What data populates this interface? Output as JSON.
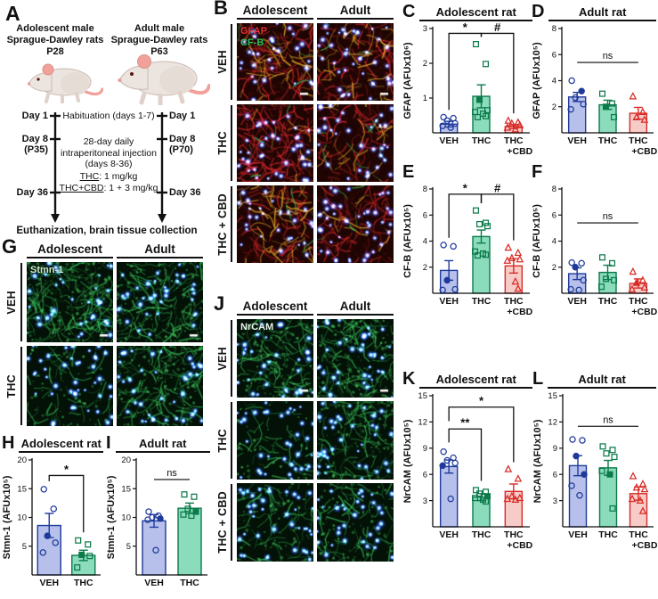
{
  "colors": {
    "veh_fill": "#b7c0ea",
    "veh_stroke": "#1e3a9a",
    "thc_fill": "#8adcbd",
    "thc_stroke": "#0d7a4a",
    "cbd_fill": "#f7cbc7",
    "cbd_stroke": "#d82b26",
    "axis": "#111111"
  },
  "panelA": {
    "letter": "A",
    "adolescent_header": "Adolescent male\nSprague-Dawley rats\nP28",
    "adult_header": "Adult male\nSprague-Dawley rats\nP63",
    "timeline_left": {
      "day1": "Day 1",
      "day8": "Day 8",
      "p": "(P35)",
      "day36": "Day 36"
    },
    "timeline_right": {
      "day1": "Day 1",
      "day8": "Day 8",
      "p": "(P70)",
      "day36": "Day 36"
    },
    "center": {
      "habituation": "Habituation\n(days 1-7)",
      "injection": "28-day daily\nintraperitoneal injection\n(days 8-36)",
      "thc_label": "THC",
      "thc_dose": ": 1 mg/kg",
      "thccbd_label": "THC+CBD",
      "thccbd_dose": ": 1 + 3 mg/kg"
    },
    "endpoint": "Euthanization, brain tissue collection"
  },
  "panelB": {
    "letter": "B",
    "col_headers": [
      "Adolescent",
      "Adult"
    ],
    "row_labels": [
      "VEH",
      "THC",
      "THC + CBD"
    ],
    "stain_labels": [
      {
        "text": "GFAP",
        "color": "#ee2e33"
      },
      {
        "text": "CF-B",
        "color": "#2fc457"
      }
    ],
    "cells": [
      {
        "r": 0.55,
        "y": 0.55,
        "g": 0.18,
        "n": 0.75
      },
      {
        "r": 0.5,
        "y": 0.5,
        "g": 0.15,
        "n": 0.85
      },
      {
        "r": 1.0,
        "y": 0.15,
        "g": 0.2,
        "n": 0.9
      },
      {
        "r": 0.45,
        "y": 0.25,
        "g": 0.25,
        "n": 0.8
      },
      {
        "r": 0.45,
        "y": 0.65,
        "g": 0.12,
        "n": 0.7
      },
      {
        "r": 0.55,
        "y": 0.15,
        "g": 0.18,
        "n": 1.0
      }
    ]
  },
  "panelG": {
    "letter": "G",
    "col_headers": [
      "Adolescent",
      "Adult"
    ],
    "row_labels": [
      "VEH",
      "THC"
    ],
    "stain_labels": [
      {
        "text": "Stmn-1",
        "color": "#cdeccd"
      }
    ],
    "cells": [
      {
        "g": 0.95,
        "n": 0.8
      },
      {
        "g": 0.7,
        "n": 0.8
      },
      {
        "g": 0.3,
        "n": 1.0
      },
      {
        "g": 0.75,
        "n": 0.9
      }
    ]
  },
  "panelJ": {
    "letter": "J",
    "col_headers": [
      "Adolescent",
      "Adult"
    ],
    "row_labels": [
      "VEH",
      "THC",
      "THC + CBD"
    ],
    "stain_labels": [
      {
        "text": "NrCAM",
        "color": "#e9f2e9"
      }
    ],
    "cells": [
      {
        "g": 0.6,
        "n": 0.8
      },
      {
        "g": 0.65,
        "n": 0.9
      },
      {
        "g": 0.25,
        "n": 0.85
      },
      {
        "g": 0.55,
        "n": 0.9
      },
      {
        "g": 0.35,
        "n": 0.9
      },
      {
        "g": 0.4,
        "n": 0.8
      }
    ]
  },
  "chart_data": [
    {
      "id": "C",
      "letter": "C",
      "title": "Adolescent rat",
      "type": "bar",
      "ylabel": "GFAP (AFUx10⁶)",
      "ymax": 3,
      "yticks": [
        1,
        2,
        3
      ],
      "cat_lines": [
        [
          "VEH"
        ],
        [
          "THC"
        ],
        [
          "THC",
          "+CBD"
        ]
      ],
      "groups": [
        {
          "name": "VEH",
          "scheme": "veh",
          "bar": 0.25,
          "err": 0.08,
          "points": [
            0.45,
            0.42,
            0.35,
            0.27,
            0.2,
            0.15
          ],
          "filled": []
        },
        {
          "name": "THC",
          "scheme": "thc",
          "bar": 1.05,
          "err": 0.33,
          "points": [
            2.55,
            1.98,
            0.95,
            0.65,
            0.6,
            0.55,
            0.48,
            0.45
          ],
          "filled": [
            2
          ]
        },
        {
          "name": "THC+CBD",
          "scheme": "cbd",
          "bar": 0.18,
          "err": 0.06,
          "points": [
            0.35,
            0.3,
            0.27,
            0.22,
            0.15,
            0.1
          ],
          "filled": []
        }
      ],
      "sig": [
        {
          "a": 0,
          "b": 1,
          "label": "*",
          "y": 2.86
        },
        {
          "a": 1,
          "b": 2,
          "label": "#",
          "y": 2.86
        }
      ]
    },
    {
      "id": "D",
      "letter": "D",
      "title": "Adult rat",
      "type": "bar",
      "ylabel": "GFAP (AFUx10⁵)",
      "ymax": 8,
      "yticks": [
        2,
        4,
        6,
        8
      ],
      "cat_lines": [
        [
          "VEH"
        ],
        [
          "THC"
        ],
        [
          "THC",
          "+CBD"
        ]
      ],
      "groups": [
        {
          "name": "VEH",
          "scheme": "veh",
          "bar": 2.75,
          "err": 0.35,
          "points": [
            4.0,
            3.2,
            2.7,
            2.2,
            1.8
          ],
          "filled": [
            1
          ]
        },
        {
          "name": "THC",
          "scheme": "thc",
          "bar": 2.15,
          "err": 0.35,
          "points": [
            3.0,
            2.25,
            2.0,
            1.2
          ],
          "filled": [
            2
          ]
        },
        {
          "name": "THC+CBD",
          "scheme": "cbd",
          "bar": 1.5,
          "err": 0.45,
          "points": [
            2.8,
            1.6,
            1.2,
            1.0
          ],
          "filled": []
        }
      ],
      "sig": [
        {
          "a": 0,
          "b": 2,
          "label": "ns",
          "y": 5.4
        }
      ]
    },
    {
      "id": "E",
      "letter": "E",
      "title": "",
      "type": "bar",
      "ylabel": "CF-B (AFUx10⁵)",
      "ymax": 8,
      "yticks": [
        2,
        4,
        6,
        8
      ],
      "cat_lines": [
        [
          "VEH"
        ],
        [
          "THC"
        ],
        [
          "THC",
          "+CBD"
        ]
      ],
      "groups": [
        {
          "name": "VEH",
          "scheme": "veh",
          "bar": 1.75,
          "err": 0.75,
          "points": [
            3.7,
            3.6,
            1.0,
            0.3,
            0.25
          ],
          "filled": [
            2
          ]
        },
        {
          "name": "THC",
          "scheme": "thc",
          "bar": 4.35,
          "err": 0.5,
          "points": [
            6.35,
            5.4,
            5.3,
            5.15,
            3.2,
            3.05,
            2.95,
            2.9
          ],
          "filled": []
        },
        {
          "name": "THC+CBD",
          "scheme": "cbd",
          "bar": 2.1,
          "err": 0.55,
          "points": [
            3.5,
            3.1,
            2.7,
            2.6,
            2.5,
            0.9,
            0.35
          ],
          "filled": []
        }
      ],
      "sig": [
        {
          "a": 0,
          "b": 1,
          "label": "*",
          "y": 7.6
        },
        {
          "a": 1,
          "b": 2,
          "label": "#",
          "y": 7.6
        }
      ]
    },
    {
      "id": "F",
      "letter": "F",
      "title": "",
      "type": "bar",
      "ylabel": "CF-B (AFUx10⁵)",
      "ymax": 8,
      "yticks": [
        2,
        4,
        6,
        8
      ],
      "cat_lines": [
        [
          "VEH"
        ],
        [
          "THC"
        ],
        [
          "THC",
          "+CBD"
        ]
      ],
      "groups": [
        {
          "name": "VEH",
          "scheme": "veh",
          "bar": 1.5,
          "err": 0.45,
          "points": [
            2.35,
            2.3,
            2.0,
            1.0,
            0.3,
            0.25
          ],
          "filled": [
            2
          ]
        },
        {
          "name": "THC",
          "scheme": "thc",
          "bar": 1.6,
          "err": 0.55,
          "points": [
            2.75,
            2.3,
            1.1,
            1.0,
            0.5
          ],
          "filled": []
        },
        {
          "name": "THC+CBD",
          "scheme": "cbd",
          "bar": 0.75,
          "err": 0.35,
          "points": [
            1.65,
            1.0,
            0.8,
            0.45,
            0.3
          ],
          "filled": [
            2
          ]
        }
      ],
      "sig": [
        {
          "a": 0,
          "b": 2,
          "label": "ns",
          "y": 5.4
        }
      ]
    },
    {
      "id": "H",
      "letter": "H",
      "title": "Adolescent rat",
      "type": "bar",
      "ylabel": "Stmn-1 (AFUx10⁵)",
      "ymax": 20,
      "yticks": [
        5,
        10,
        15,
        20
      ],
      "cat_lines": [
        [
          "VEH"
        ],
        [
          "THC"
        ]
      ],
      "groups": [
        {
          "name": "VEH",
          "scheme": "veh",
          "bar": 8.6,
          "err": 2.1,
          "points": [
            14.9,
            11.5,
            6.8,
            5.6,
            3.9
          ],
          "filled": [
            2
          ]
        },
        {
          "name": "THC",
          "scheme": "thc",
          "bar": 3.4,
          "err": 0.9,
          "points": [
            6.0,
            5.3,
            3.5,
            3.3,
            1.3
          ],
          "filled": [
            2
          ]
        }
      ],
      "sig": [
        {
          "a": 0,
          "b": 1,
          "label": "*",
          "y": 17.3
        }
      ]
    },
    {
      "id": "I",
      "letter": "I",
      "title": "Adult rat",
      "type": "bar",
      "ylabel": "Stmn-1 (AFUx10⁵)",
      "ymax": 20,
      "yticks": [
        5,
        10,
        15,
        20
      ],
      "cat_lines": [
        [
          "VEH"
        ],
        [
          "THC"
        ]
      ],
      "groups": [
        {
          "name": "VEH",
          "scheme": "veh",
          "bar": 9.4,
          "err": 1.1,
          "points": [
            11.0,
            10.3,
            10.0,
            9.8,
            9.6,
            4.3
          ],
          "filled": [
            3
          ]
        },
        {
          "name": "THC",
          "scheme": "thc",
          "bar": 11.6,
          "err": 0.9,
          "points": [
            14.0,
            13.6,
            11.5,
            11.0,
            10.5,
            10.3
          ],
          "filled": [
            3
          ]
        }
      ],
      "sig": [
        {
          "a": 0,
          "b": 1,
          "label": "ns",
          "y": 16.6
        }
      ]
    },
    {
      "id": "K",
      "letter": "K",
      "title": "Adolescent rat",
      "type": "bar",
      "ylabel": "NrCAM (AFUx10⁵)",
      "ymax": 15,
      "yticks": [
        3,
        6,
        9,
        12,
        15
      ],
      "cat_lines": [
        [
          "VEH"
        ],
        [
          "THC"
        ],
        [
          "THC",
          "+CBD"
        ]
      ],
      "groups": [
        {
          "name": "VEH",
          "scheme": "veh",
          "bar": 6.9,
          "err": 0.75,
          "points": [
            8.6,
            7.9,
            7.6,
            7.3,
            7.0,
            3.2
          ],
          "filled": [
            4
          ]
        },
        {
          "name": "THC",
          "scheme": "thc",
          "bar": 3.4,
          "err": 0.4,
          "points": [
            4.2,
            4.0,
            3.8,
            3.5,
            3.3,
            3.1,
            2.9
          ],
          "filled": [
            3
          ]
        },
        {
          "name": "THC+CBD",
          "scheme": "cbd",
          "bar": 4.05,
          "err": 0.85,
          "points": [
            6.6,
            5.5,
            3.5,
            3.3,
            3.2,
            3.1
          ],
          "filled": []
        }
      ],
      "sig": [
        {
          "a": 0,
          "b": 1,
          "label": "**",
          "y": 11.2
        },
        {
          "a": 0,
          "b": 2,
          "label": "*",
          "y": 13.7,
          "la": 12.1,
          "lb": 7.4
        }
      ]
    },
    {
      "id": "L",
      "letter": "L",
      "title": "Adult rat",
      "type": "bar",
      "ylabel": "NrCAM (AFUx10⁵)",
      "ymax": 15,
      "yticks": [
        3,
        6,
        9,
        12,
        15
      ],
      "cat_lines": [
        [
          "VEH"
        ],
        [
          "THC"
        ],
        [
          "THC",
          "+CBD"
        ]
      ],
      "groups": [
        {
          "name": "VEH",
          "scheme": "veh",
          "bar": 7.0,
          "err": 1.15,
          "points": [
            10.0,
            9.9,
            8.1,
            6.0,
            4.7,
            3.6
          ],
          "filled": [
            2,
            3
          ]
        },
        {
          "name": "THC",
          "scheme": "thc",
          "bar": 6.75,
          "err": 0.85,
          "points": [
            9.2,
            8.8,
            8.4,
            8.0,
            6.4,
            6.0,
            2.1
          ],
          "filled": [
            5
          ]
        },
        {
          "name": "THC+CBD",
          "scheme": "cbd",
          "bar": 3.8,
          "err": 0.75,
          "points": [
            5.8,
            4.9,
            4.5,
            4.3,
            3.2,
            3.0,
            1.8
          ],
          "filled": []
        }
      ],
      "sig": [
        {
          "a": 0,
          "b": 2,
          "label": "ns",
          "y": 11.5
        }
      ]
    }
  ]
}
